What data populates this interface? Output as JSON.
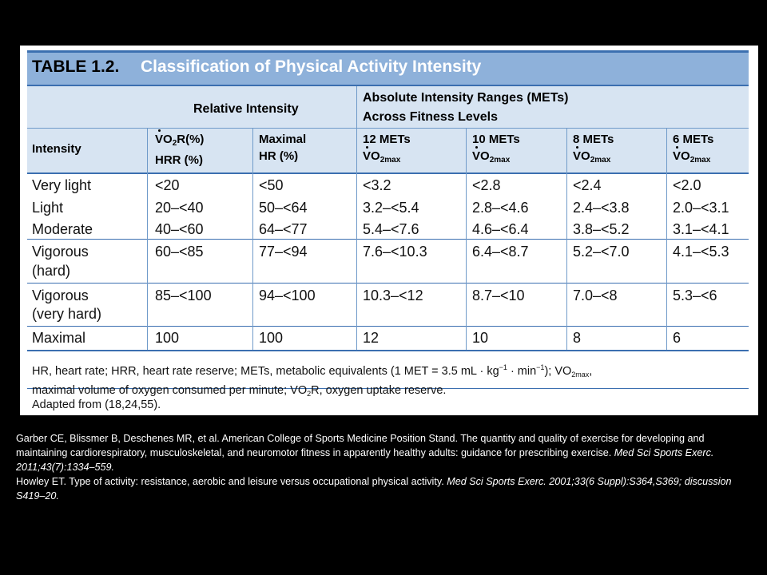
{
  "table": {
    "title_number": "TABLE 1.2.",
    "title_text": "Classification of Physical Activity Intensity",
    "group_relative": "Relative Intensity",
    "group_absolute_1": "Absolute Intensity Ranges (METs)",
    "group_absolute_2": "Across Fitness Levels",
    "col_intensity": "Intensity",
    "col_vo2r_a": "VO",
    "col_vo2r_sub": "2",
    "col_vo2r_b": "R(%)",
    "col_vo2r_line2": "HRR (%)",
    "col_maxhr_1": "Maximal",
    "col_maxhr_2": "HR (%)",
    "col_12": "12 METs",
    "col_10": "10 METs",
    "col_8": "8 METs",
    "col_6": "6 METs",
    "vo2max_v": "VO",
    "vo2max_sub": "2max",
    "rows": [
      {
        "intensity": "Very light",
        "intensity2": "",
        "vo2r": "<20",
        "maxhr": "<50",
        "m12": "<3.2",
        "m10": "<2.8",
        "m8": "<2.4",
        "m6": "<2.0"
      },
      {
        "intensity": "Light",
        "intensity2": "",
        "vo2r": "20–<40",
        "maxhr": "50–<64",
        "m12": "3.2–<5.4",
        "m10": "2.8–<4.6",
        "m8": "2.4–<3.8",
        "m6": "2.0–<3.1"
      },
      {
        "intensity": "Moderate",
        "intensity2": "",
        "vo2r": "40–<60",
        "maxhr": "64–<77",
        "m12": "5.4–<7.6",
        "m10": "4.6–<6.4",
        "m8": "3.8–<5.2",
        "m6": "3.1–<4.1"
      },
      {
        "intensity": "Vigorous",
        "intensity2": "(hard)",
        "vo2r": "60–<85",
        "maxhr": "77–<94",
        "m12": "7.6–<10.3",
        "m10": "6.4–<8.7",
        "m8": "5.2–<7.0",
        "m6": "4.1–<5.3"
      },
      {
        "intensity": "Vigorous",
        "intensity2": "(very hard)",
        "vo2r": "85–<100",
        "maxhr": "94–<100",
        "m12": "10.3–<12",
        "m10": "8.7–<10",
        "m8": "7.0–<8",
        "m6": "5.3–<6"
      },
      {
        "intensity": "Maximal",
        "intensity2": "",
        "vo2r": "100",
        "maxhr": "100",
        "m12": "12",
        "m10": "10",
        "m8": "8",
        "m6": "6"
      }
    ],
    "footnote_1": "HR, heart rate; HRR, heart rate reserve; METs, metabolic equivalents (1 MET = 3.5 mL · kg",
    "footnote_sup1": "−1",
    "footnote_2": " · min",
    "footnote_sup2": "−1",
    "footnote_3": "); VO",
    "footnote_sub3": "2max",
    "footnote_4": ",",
    "footnote_5": "maximal volume of oxygen consumed per minute; VO",
    "footnote_sub5": "2",
    "footnote_6": "R, oxygen uptake reserve.",
    "adapted": "Adapted from (18,24,55)."
  },
  "references": {
    "ref1_plain": "Garber CE, Blissmer B, Deschenes MR, et al. American College of Sports Medicine Position Stand. The quantity and quality of exercise for developing and maintaining cardiorespiratory, musculoskeletal, and neuromotor fitness in apparently healthy adults: guidance for prescribing exercise. ",
    "ref1_italic": "Med Sci Sports Exerc. 2011;43(7):1334–559.",
    "ref2_plain": "Howley ET. Type of activity: resistance, aerobic and leisure versus occupational physical activity. ",
    "ref2_italic": "Med Sci Sports Exerc. 2001;33(6 Suppl):S364,S369;  discussion S419–20."
  }
}
